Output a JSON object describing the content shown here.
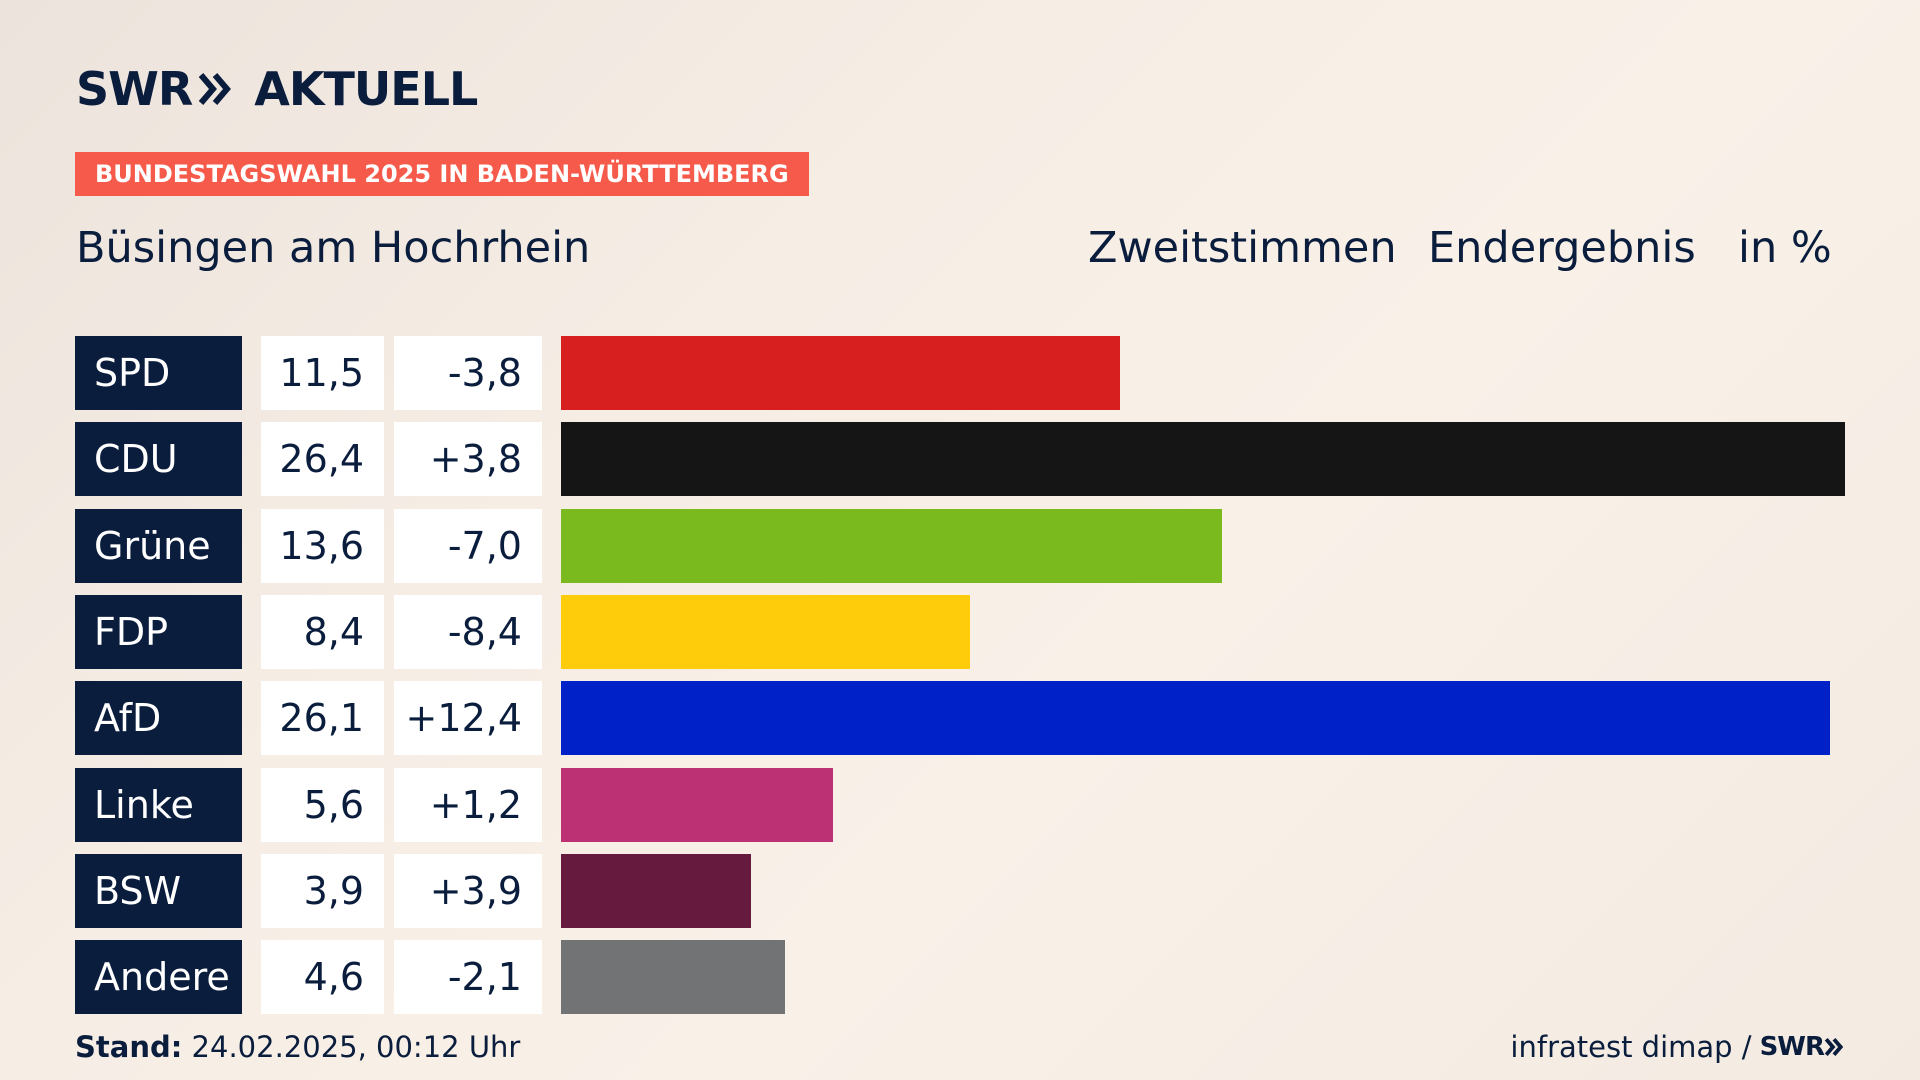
{
  "header": {
    "logo_swr": "SWR",
    "logo_aktuell": "AKTUELL",
    "banner": "BUNDESTAGSWAHL 2025 IN BADEN-WÜRTTEMBERG",
    "region": "Büsingen am Hochrhein",
    "vote_type": "Zweitstimmen",
    "status": "Endergebnis",
    "unit": "in %"
  },
  "footer": {
    "stand_label": "Stand:",
    "stand_value": "24.02.2025, 00:12 Uhr",
    "source": "infratest dimap /",
    "source_logo": "SWR"
  },
  "colors": {
    "navy": "#0b1d3d",
    "banner": "#f65a4a"
  },
  "chart_data": {
    "type": "bar",
    "orientation": "horizontal",
    "categories": [
      "SPD",
      "CDU",
      "Grüne",
      "FDP",
      "AfD",
      "Linke",
      "BSW",
      "Andere"
    ],
    "values": [
      11.5,
      26.4,
      13.6,
      8.4,
      26.1,
      5.6,
      3.9,
      4.6
    ],
    "value_labels": [
      "11,5",
      "26,4",
      "13,6",
      "8,4",
      "26,1",
      "5,6",
      "3,9",
      "4,6"
    ],
    "changes": [
      -3.8,
      3.8,
      -7.0,
      -8.4,
      12.4,
      1.2,
      3.9,
      -2.1
    ],
    "change_labels": [
      "-3,8",
      "+3,8",
      "-7,0",
      "-8,4",
      "+12,4",
      "+1,2",
      "+3,9",
      "-2,1"
    ],
    "colors": [
      "#d71f1f",
      "#151515",
      "#7aba1e",
      "#fecc0a",
      "#0021c7",
      "#bb3173",
      "#661a3d",
      "#727374"
    ],
    "xlim": [
      0,
      26.4
    ],
    "grid": false,
    "legend": "none"
  }
}
